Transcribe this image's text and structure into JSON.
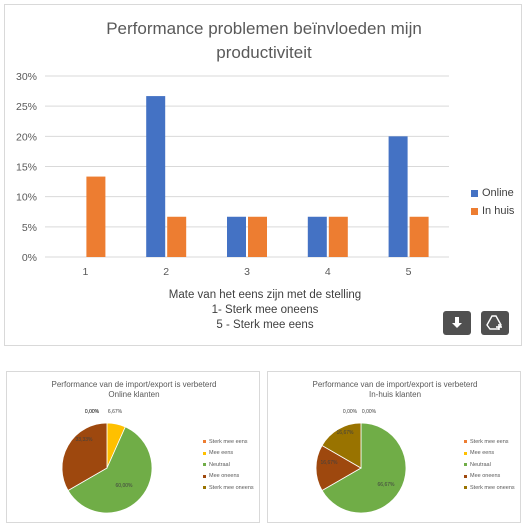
{
  "main_chart": {
    "title_line1": "Performance problemen beïnvloeden mijn",
    "title_line2": "productiviteit",
    "xlabel_line1": "Mate van het eens zijn met de stelling",
    "xlabel_line2": "1- Sterk mee oneens",
    "xlabel_line3": "5 - Sterk mee eens",
    "legend": [
      {
        "label": "Online",
        "color": "#4472c4"
      },
      {
        "label": "In huis",
        "color": "#ed7d31"
      }
    ]
  },
  "buttons": {
    "download_icon": "download-arrow-icon",
    "add_to_drive_icon": "add-to-drive-icon"
  },
  "pie_legend_labels": [
    "Sterk mee eens",
    "Mee eens",
    "Neutraal",
    "Mee oneens",
    "Sterk mee oneens"
  ],
  "pie_colors": [
    "#ed7d31",
    "#ffc000",
    "#70ad47",
    "#9e480e",
    "#997300"
  ],
  "pie1": {
    "title_line1": "Performance van de import/export is verbeterd",
    "title_line2": "Online klanten"
  },
  "pie2": {
    "title_line1": "Performance van de import/export is verbeterd",
    "title_line2": "In-huis klanten"
  },
  "chart_data": [
    {
      "type": "bar",
      "title": "Performance problemen beïnvloeden mijn productiviteit",
      "xlabel": "Mate van het eens zijn met de stelling 1- Sterk mee oneens 5 - Sterk mee eens",
      "categories": [
        "1",
        "2",
        "3",
        "4",
        "5"
      ],
      "series": [
        {
          "name": "Online",
          "values": [
            0,
            26.67,
            6.67,
            6.67,
            20
          ]
        },
        {
          "name": "In huis",
          "values": [
            13.33,
            6.67,
            6.67,
            6.67,
            6.67
          ]
        }
      ],
      "ylim": [
        0,
        30
      ],
      "yticks": [
        "0%",
        "5%",
        "10%",
        "15%",
        "20%",
        "25%",
        "30%"
      ],
      "grid": true,
      "legend_position": "right"
    },
    {
      "type": "pie",
      "title": "Performance van de import/export is verbeterd Online klanten",
      "labels": [
        "Sterk mee eens",
        "Mee eens",
        "Neutraal",
        "Mee oneens",
        "Sterk mee oneens"
      ],
      "values": [
        0,
        6.67,
        60,
        33.33,
        0
      ],
      "data_labels": [
        "0,00%",
        "6,67%",
        "60,00%",
        "33,33%",
        "0,00%"
      ],
      "legend_position": "right"
    },
    {
      "type": "pie",
      "title": "Performance van de import/export is verbeterd In-huis klanten",
      "labels": [
        "Sterk mee eens",
        "Mee eens",
        "Neutraal",
        "Mee oneens",
        "Sterk mee oneens"
      ],
      "values": [
        0,
        0,
        66.67,
        16.67,
        16.67
      ],
      "data_labels": [
        "0,00%",
        "0,00%",
        "66,67%",
        "16,67%",
        "16,67%"
      ],
      "legend_position": "right"
    }
  ]
}
